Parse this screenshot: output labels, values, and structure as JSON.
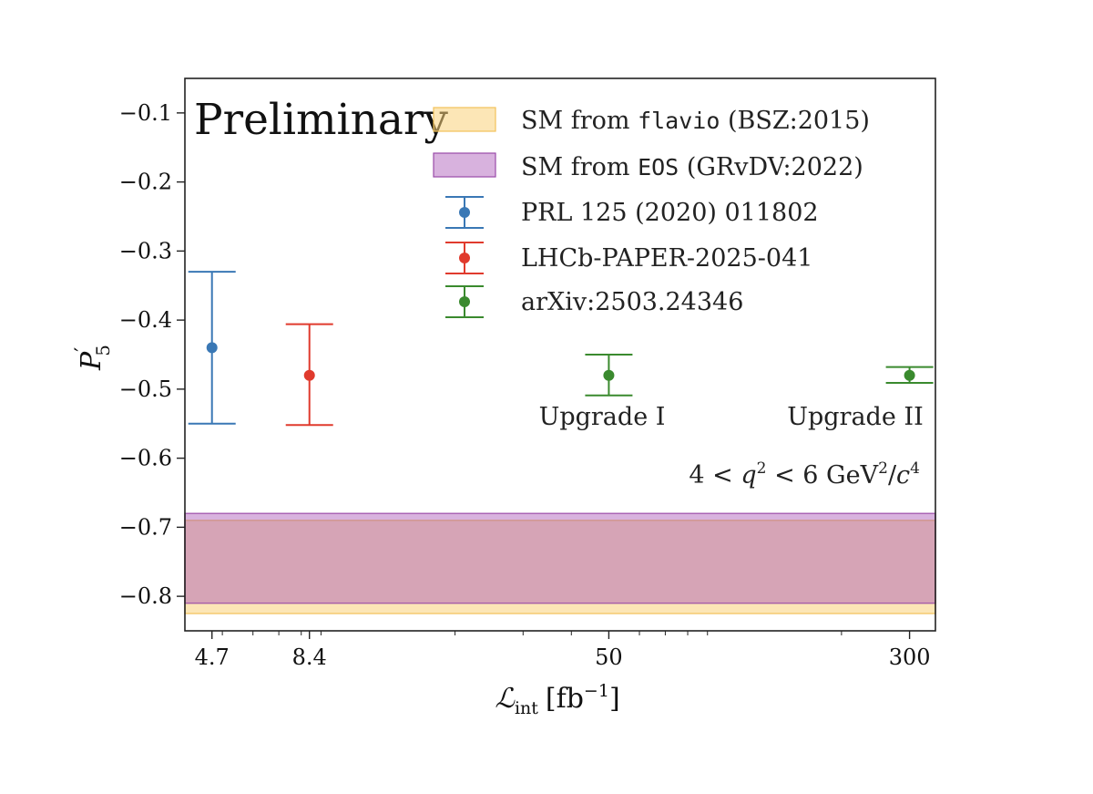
{
  "chart_data": {
    "type": "scatter",
    "title": "",
    "xlabel": "ℒ",
    "xlabel_sub": "int",
    "xlabel_unit_open": "[fb",
    "xlabel_unit_sup": "−1",
    "xlabel_unit_close": "]",
    "ylabel": "P",
    "ylabel_sub": "5",
    "ylabel_prime": "′",
    "x_scale": "log",
    "xlim": [
      4.0,
      350.0
    ],
    "ylim": [
      -0.85,
      -0.05
    ],
    "grid": false,
    "legend_placement": "top-right",
    "x_ticks": [
      {
        "value": 4.7,
        "label": "4.7"
      },
      {
        "value": 8.4,
        "label": "8.4"
      },
      {
        "value": 50,
        "label": "50"
      },
      {
        "value": 300,
        "label": "300"
      }
    ],
    "y_ticks": [
      {
        "value": -0.1,
        "label": "−0.1"
      },
      {
        "value": -0.2,
        "label": "−0.2"
      },
      {
        "value": -0.3,
        "label": "−0.3"
      },
      {
        "value": -0.4,
        "label": "−0.4"
      },
      {
        "value": -0.5,
        "label": "−0.5"
      },
      {
        "value": -0.6,
        "label": "−0.6"
      },
      {
        "value": -0.7,
        "label": "−0.7"
      },
      {
        "value": -0.8,
        "label": "−0.8"
      }
    ],
    "bands": [
      {
        "name_prefix": "SM from ",
        "name_code": "flavio",
        "name_suffix": " (BSZ:2015)",
        "y_low": -0.825,
        "y_high": -0.69,
        "color": "#f9d27a",
        "edge_color": "#f2c25a"
      },
      {
        "name_prefix": "SM from ",
        "name_code": "EOS",
        "name_suffix": " (GRvDV:2022)",
        "y_low": -0.81,
        "y_high": -0.68,
        "color": "#a855b5",
        "edge_color": "#9a4aa8"
      }
    ],
    "series": [
      {
        "name": "PRL 125 (2020) 011802",
        "color": "#3a78b5",
        "points": [
          {
            "x": 4.7,
            "y": -0.44,
            "y_low": -0.55,
            "y_high": -0.33
          }
        ]
      },
      {
        "name": "LHCb-PAPER-2025-041",
        "color": "#e03a2d",
        "points": [
          {
            "x": 8.4,
            "y": -0.48,
            "y_low": -0.552,
            "y_high": -0.406
          }
        ]
      },
      {
        "name": "arXiv:2503.24346",
        "color": "#3a8a2e",
        "points": [
          {
            "x": 50,
            "y": -0.48,
            "y_low": -0.509,
            "y_high": -0.45
          },
          {
            "x": 300,
            "y": -0.48,
            "y_low": -0.491,
            "y_high": -0.468
          }
        ]
      }
    ],
    "annotations": {
      "preliminary": "Preliminary",
      "upgrade1": "Upgrade I",
      "upgrade2": "Upgrade II",
      "q2_lhs": "4 < ",
      "q2_var": "q",
      "q2_sup": "2",
      "q2_mid": " < 6 GeV",
      "q2_unit_sup": "2",
      "q2_slash": "/",
      "q2_c": "c",
      "q2_c_sup": "4"
    }
  }
}
